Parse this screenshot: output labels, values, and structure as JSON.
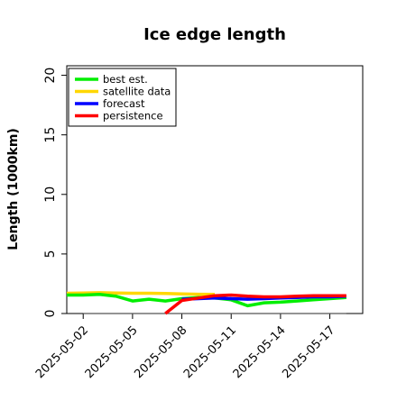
{
  "chart_data": {
    "type": "line",
    "title": "Ice edge length",
    "ylabel": "Length (1000km)",
    "xlabel": "",
    "ylim": [
      0,
      20.8
    ],
    "xlim": [
      "2025-05-01",
      "2025-05-19"
    ],
    "yticks": [
      0,
      5,
      10,
      15,
      20
    ],
    "xticks": [
      "2025-05-02",
      "2025-05-05",
      "2025-05-08",
      "2025-05-11",
      "2025-05-14",
      "2025-05-17"
    ],
    "highlight_xtick": "2025-05-08",
    "highlight_color": "#228B22",
    "grid": false,
    "legend_position": "top-left",
    "reference_line": {
      "y": 0,
      "from": "2025-05-02",
      "to": "2025-05-18",
      "color": "#555555"
    },
    "series": [
      {
        "name": "best est.",
        "color": "#00ee00",
        "points": [
          [
            "2025-05-01",
            1.55
          ],
          [
            "2025-05-02",
            1.55
          ],
          [
            "2025-05-03",
            1.6
          ],
          [
            "2025-05-04",
            1.45
          ],
          [
            "2025-05-05",
            1.05
          ],
          [
            "2025-05-06",
            1.2
          ],
          [
            "2025-05-07",
            1.05
          ],
          [
            "2025-05-08",
            1.25
          ],
          [
            "2025-05-09",
            1.35
          ],
          [
            "2025-05-10",
            1.3
          ],
          [
            "2025-05-11",
            1.15
          ],
          [
            "2025-05-12",
            0.65
          ],
          [
            "2025-05-13",
            0.9
          ],
          [
            "2025-05-14",
            0.95
          ],
          [
            "2025-05-15",
            1.05
          ],
          [
            "2025-05-16",
            1.15
          ],
          [
            "2025-05-17",
            1.25
          ],
          [
            "2025-05-18",
            1.35
          ]
        ]
      },
      {
        "name": "satellite data",
        "color": "#ffd700",
        "points": [
          [
            "2025-05-01",
            1.7
          ],
          [
            "2025-05-02",
            1.72
          ],
          [
            "2025-05-03",
            1.75
          ],
          [
            "2025-05-04",
            1.72
          ],
          [
            "2025-05-05",
            1.7
          ],
          [
            "2025-05-06",
            1.7
          ],
          [
            "2025-05-07",
            1.68
          ],
          [
            "2025-05-08",
            1.65
          ],
          [
            "2025-05-09",
            1.62
          ],
          [
            "2025-05-10",
            1.6
          ]
        ]
      },
      {
        "name": "forecast",
        "color": "#0000ff",
        "points": [
          [
            "2025-05-08",
            1.2
          ],
          [
            "2025-05-09",
            1.25
          ],
          [
            "2025-05-10",
            1.3
          ],
          [
            "2025-05-11",
            1.25
          ],
          [
            "2025-05-12",
            1.2
          ],
          [
            "2025-05-13",
            1.25
          ],
          [
            "2025-05-14",
            1.3
          ],
          [
            "2025-05-15",
            1.35
          ],
          [
            "2025-05-16",
            1.4
          ],
          [
            "2025-05-17",
            1.4
          ],
          [
            "2025-05-18",
            1.45
          ]
        ]
      },
      {
        "name": "persistence",
        "color": "#ff0000",
        "points": [
          [
            "2025-05-07",
            0.0
          ],
          [
            "2025-05-08",
            1.1
          ],
          [
            "2025-05-09",
            1.3
          ],
          [
            "2025-05-10",
            1.5
          ],
          [
            "2025-05-11",
            1.55
          ],
          [
            "2025-05-12",
            1.45
          ],
          [
            "2025-05-13",
            1.4
          ],
          [
            "2025-05-14",
            1.4
          ],
          [
            "2025-05-15",
            1.45
          ],
          [
            "2025-05-16",
            1.5
          ],
          [
            "2025-05-17",
            1.5
          ],
          [
            "2025-05-18",
            1.5
          ]
        ]
      }
    ]
  }
}
